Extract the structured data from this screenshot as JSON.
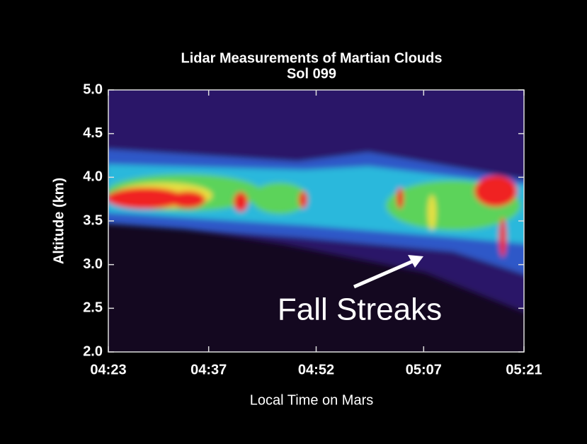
{
  "chart_data": {
    "type": "heatmap",
    "title": "Lidar Measurements of Martian Clouds",
    "subtitle": "Sol 099",
    "xlabel": "Local Time on Mars",
    "ylabel": "Altitude (km)",
    "xlim": [
      263,
      321
    ],
    "xticks": [
      {
        "value": 263,
        "label": "04:23"
      },
      {
        "value": 277,
        "label": "04:37"
      },
      {
        "value": 292,
        "label": "04:52"
      },
      {
        "value": 307,
        "label": "05:07"
      },
      {
        "value": 321,
        "label": "05:21"
      }
    ],
    "ylim": [
      2,
      5
    ],
    "yticks": [
      {
        "value": 2,
        "label": "2.0"
      },
      {
        "value": 2.5,
        "label": "2.5"
      },
      {
        "value": 3,
        "label": "3.0"
      },
      {
        "value": 3.5,
        "label": "3.5"
      },
      {
        "value": 4,
        "label": "4.0"
      },
      {
        "value": 4.5,
        "label": "4.5"
      },
      {
        "value": 5,
        "label": "5.0"
      }
    ],
    "annotations": [
      {
        "text": "Fall Streaks"
      }
    ]
  }
}
